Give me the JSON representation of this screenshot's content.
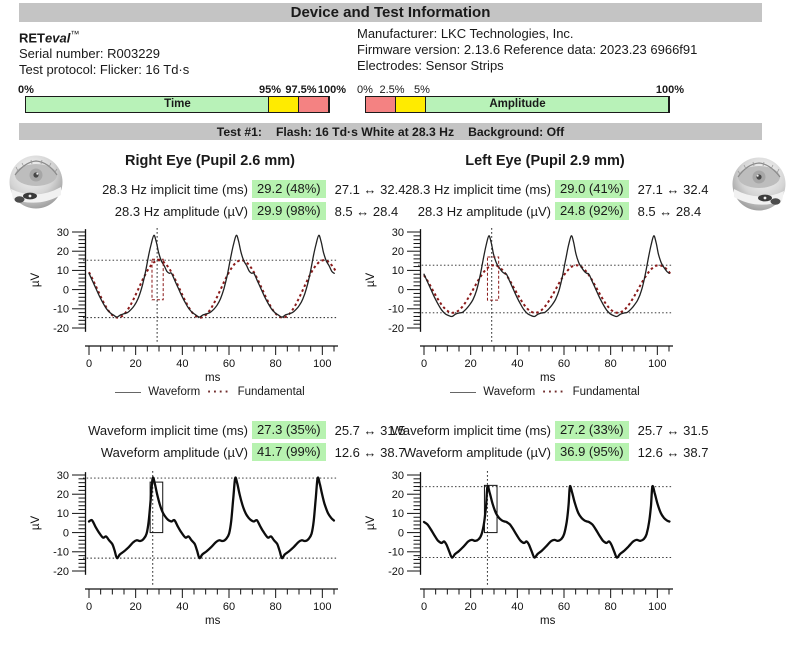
{
  "title": "Device and Test Information",
  "device": {
    "brand_bold": "RET",
    "brand_italic": "eval",
    "brand_tm": "™",
    "serial": "Serial number: R003229",
    "protocol": "Test protocol: Flicker: 16 Td·s",
    "manufacturer": "Manufacturer: LKC Technologies, Inc.",
    "firmware": "Firmware version: 2.13.6 Reference data: 2023.23 6966f91",
    "electrodes": "Electrodes: Sensor Strips"
  },
  "quality_bars": {
    "time": {
      "label": "Time",
      "ticks": [
        "0%",
        "95%",
        "97.5%",
        "100%"
      ],
      "segment_colors": [
        "green",
        "yellow",
        "red"
      ]
    },
    "amplitude": {
      "label": "Amplitude",
      "ticks": [
        "0%",
        "2.5%",
        "5%",
        "100%"
      ],
      "segment_colors": [
        "red",
        "yellow",
        "green"
      ]
    }
  },
  "test_banner": {
    "test": "Test #1:",
    "flash": "Flash: 16 Td·s White at 28.3 Hz",
    "background": "Background: Off"
  },
  "eyes": [
    {
      "header": "Right Eye (Pupil 2.6 mm)",
      "freq_rows": [
        {
          "label": "28.3 Hz implicit time (ms)",
          "value": "29.2 (48%)",
          "range": "27.1 ↔ 32.4"
        },
        {
          "label": "28.3 Hz amplitude (µV)",
          "value": "29.9 (98%)",
          "range": "8.5 ↔ 28.4"
        }
      ],
      "wave_rows": [
        {
          "label": "Waveform implicit time (ms)",
          "value": "27.3 (35%)",
          "range": "25.7 ↔ 31.5"
        },
        {
          "label": "Waveform amplitude (µV)",
          "value": "41.7 (99%)",
          "range": "12.6 ↔ 38.7"
        }
      ]
    },
    {
      "header": "Left Eye (Pupil 2.9 mm)",
      "freq_rows": [
        {
          "label": "28.3 Hz implicit time (ms)",
          "value": "29.0 (41%)",
          "range": "27.1 ↔ 32.4"
        },
        {
          "label": "28.3 Hz amplitude (µV)",
          "value": "24.8 (92%)",
          "range": "8.5 ↔ 28.4"
        }
      ],
      "wave_rows": [
        {
          "label": "Waveform implicit time (ms)",
          "value": "27.2 (33%)",
          "range": "25.7 ↔ 31.5"
        },
        {
          "label": "Waveform amplitude (µV)",
          "value": "36.9 (95%)",
          "range": "12.6 ↔ 38.7"
        }
      ]
    }
  ],
  "legend": {
    "waveform": "Waveform",
    "fundamental": "Fundamental"
  },
  "colors": {
    "banner_gray": "#c4c4c4",
    "highlight_green": "#b7f2b0",
    "bar_green": "#b8f2b8",
    "bar_yellow": "#ffeb00",
    "bar_red": "#f48282",
    "fundamental_red": "#8b1a1a",
    "waveform_black": "#1c1c1c"
  },
  "chart_data": [
    {
      "id": "right-eye-flicker-28hz",
      "type": "line",
      "eye": "right",
      "xlabel": "ms",
      "ylabel": "µV",
      "xlim": [
        0,
        106
      ],
      "ylim": [
        -24,
        32
      ],
      "xticks": [
        0,
        20,
        40,
        60,
        80,
        100
      ],
      "yticks": [
        30,
        20,
        10,
        0,
        -10,
        -20
      ],
      "series": [
        "Waveform",
        "Fundamental"
      ],
      "period_ms": 35.34,
      "waveform_cycle_t": [
        0,
        1.5,
        3,
        4.5,
        6,
        7.5,
        9,
        10.5,
        12,
        13.5,
        15,
        16.5,
        18,
        19.5,
        21,
        22.5,
        24,
        25.5,
        26.6,
        27.8,
        28.8,
        29.8,
        31,
        32.2,
        33.4,
        34.4
      ],
      "waveform_cycle_uv": [
        8.5,
        4.5,
        0.5,
        -3.5,
        -7,
        -10,
        -12,
        -13.3,
        -14.3,
        -13.2,
        -12.6,
        -12,
        -10.4,
        -8.2,
        -4.8,
        0.5,
        8,
        17.5,
        23.5,
        28.3,
        25,
        19.5,
        15,
        12.5,
        9.5,
        8.5
      ],
      "fundamental": {
        "mean_uv": 0.35,
        "half_amplitude_uv": 14.95,
        "peak_t_ms": 30
      },
      "ref_lines_uv": [
        15.3,
        -14.6
      ],
      "implicit_time_ms": 29.2,
      "box": {
        "t0": 27.0,
        "t1": 31.8,
        "v0": -5.3,
        "v1": 15.8
      },
      "style": {
        "lw": 1.3,
        "box": "dashed",
        "box_color": "#8b1a1a",
        "waveform_color": "#222222"
      }
    },
    {
      "id": "left-eye-flicker-28hz",
      "type": "line",
      "eye": "left",
      "xlabel": "ms",
      "ylabel": "µV",
      "xlim": [
        0,
        106
      ],
      "ylim": [
        -24,
        32
      ],
      "xticks": [
        0,
        20,
        40,
        60,
        80,
        100
      ],
      "yticks": [
        30,
        20,
        10,
        0,
        -10,
        -20
      ],
      "series": [
        "Waveform",
        "Fundamental"
      ],
      "period_ms": 35.34,
      "waveform_cycle_t": [
        0,
        1.5,
        3,
        4.5,
        6,
        7.5,
        9,
        10.5,
        12,
        13.5,
        15,
        16.5,
        18,
        19.5,
        21,
        22.5,
        24,
        25.5,
        26.6,
        27.8,
        28.8,
        29.8,
        31,
        32.2,
        33.4,
        34.4
      ],
      "waveform_cycle_uv": [
        8,
        4,
        0,
        -4,
        -7.5,
        -10.5,
        -12.5,
        -13.5,
        -14,
        -12.8,
        -12.2,
        -11.8,
        -10.2,
        -8,
        -5.2,
        -0.5,
        7,
        16.5,
        23,
        28,
        24.5,
        18.5,
        14,
        11.5,
        9.5,
        8.5
      ],
      "fundamental": {
        "mean_uv": 0.3,
        "half_amplitude_uv": 12.4,
        "peak_t_ms": 30
      },
      "ref_lines_uv": [
        12.7,
        -12.1
      ],
      "implicit_time_ms": 29.0,
      "box": {
        "t0": 27.2,
        "t1": 32.0,
        "v0": -5.5,
        "v1": 17.0
      },
      "style": {
        "lw": 1.3,
        "box": "dashed",
        "box_color": "#8b1a1a",
        "waveform_color": "#222222"
      }
    },
    {
      "id": "right-eye-waveform",
      "type": "line",
      "eye": "right",
      "xlabel": "ms",
      "ylabel": "µV",
      "xlim": [
        0,
        106
      ],
      "ylim": [
        -24,
        32
      ],
      "xticks": [
        0,
        20,
        40,
        60,
        80,
        100
      ],
      "yticks": [
        30,
        20,
        10,
        0,
        -10,
        -20
      ],
      "series": [
        "Waveform"
      ],
      "period_ms": 35.34,
      "waveform_cycle_t": [
        0,
        1.3,
        2.8,
        4.3,
        6,
        7.3,
        8.6,
        10,
        11,
        12,
        13.2,
        15,
        17,
        19,
        20.5,
        22,
        23.5,
        24.7,
        25.6,
        26.5,
        27.3,
        28.2,
        29.2,
        30.4,
        31.8,
        33.2,
        34.3
      ],
      "waveform_cycle_uv": [
        5.8,
        6.4,
        3,
        0,
        -2.6,
        -2,
        -4,
        -6,
        -9.5,
        -13.3,
        -11.4,
        -9.8,
        -7.6,
        -5,
        -4,
        -4.4,
        -3.2,
        -0.5,
        6,
        18,
        28.4,
        25.5,
        20,
        14.5,
        10,
        7.5,
        6.3
      ],
      "fundamental": null,
      "ref_lines_uv": [
        28.4,
        -13.3
      ],
      "implicit_time_ms": 27.3,
      "box": {
        "t0": 26.2,
        "t1": 31.6,
        "v0": 0,
        "v1": 26.3
      },
      "style": {
        "lw": 2.3,
        "box": "solid",
        "box_color": "#111111",
        "waveform_color": "#0d0d0d"
      }
    },
    {
      "id": "left-eye-waveform",
      "type": "line",
      "eye": "left",
      "xlabel": "ms",
      "ylabel": "µV",
      "xlim": [
        0,
        106
      ],
      "ylim": [
        -24,
        32
      ],
      "xticks": [
        0,
        20,
        40,
        60,
        80,
        100
      ],
      "yticks": [
        30,
        20,
        10,
        0,
        -10,
        -20
      ],
      "series": [
        "Waveform"
      ],
      "period_ms": 35.34,
      "waveform_cycle_t": [
        0,
        1.5,
        3,
        4.5,
        6,
        7.5,
        8.6,
        9.6,
        10.8,
        12,
        13.3,
        15,
        17,
        19,
        20.5,
        22,
        23.5,
        24.7,
        25.8,
        26.6,
        27.2,
        28.2,
        29.4,
        30.8,
        32.2,
        33.6,
        34.5
      ],
      "waveform_cycle_uv": [
        5.5,
        4.2,
        1.5,
        -1.5,
        -4.2,
        -5.4,
        -4.6,
        -6.2,
        -9.8,
        -13,
        -11.2,
        -9.6,
        -7.2,
        -4.6,
        -3.8,
        -4.3,
        -3.4,
        -0.8,
        5.5,
        14,
        24,
        20.5,
        15,
        10.2,
        7.6,
        6.2,
        5.8
      ],
      "fundamental": null,
      "ref_lines_uv": [
        23.9,
        -13.0
      ],
      "implicit_time_ms": 27.2,
      "box": {
        "t0": 25.9,
        "t1": 31.3,
        "v0": 0,
        "v1": 24.6
      },
      "style": {
        "lw": 2.3,
        "box": "solid",
        "box_color": "#111111",
        "waveform_color": "#0d0d0d"
      }
    }
  ]
}
